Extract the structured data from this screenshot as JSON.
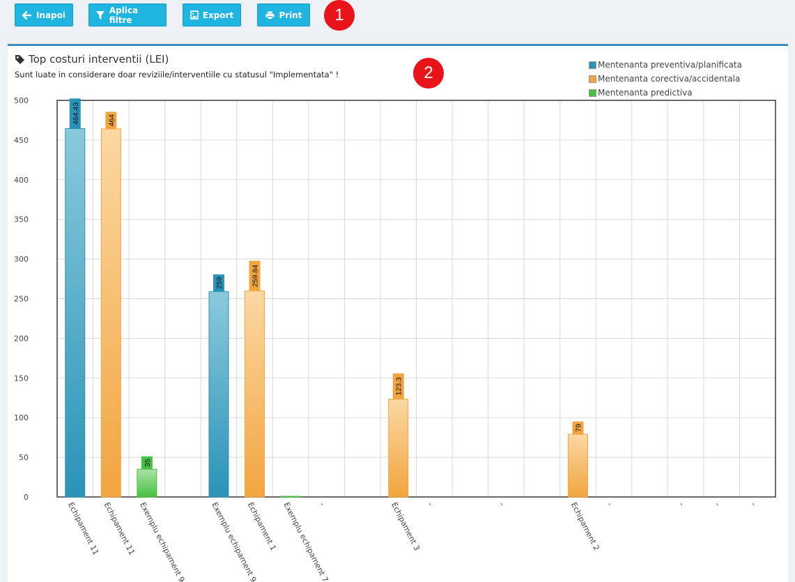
{
  "toolbar": {
    "back_label": "Inapoi",
    "filter_label": "Aplica filtre",
    "export_label": "Export",
    "print_label": "Print",
    "badge_1": "1"
  },
  "panel": {
    "title": "Top costuri interventii (LEI)",
    "subtitle": "Sunt luate in considerare doar reviziile/interventiile cu statusul \"Implementata\" !",
    "badge_2": "2"
  },
  "colors": {
    "button": "#1fb5e0",
    "preventiva": "#2b93b7",
    "corectiva": "#f2a53f",
    "predictiva": "#48c042",
    "badge": "#e8141a",
    "panel_border": "#3c8dbc"
  },
  "chart_data": {
    "type": "bar",
    "title": "Top costuri interventii (LEI)",
    "ylim": [
      0,
      500
    ],
    "yticks": [
      0,
      50,
      100,
      150,
      200,
      250,
      300,
      350,
      400,
      450,
      500
    ],
    "grid": true,
    "legend_position": "top-right",
    "legend": [
      {
        "name": "Mentenanta preventiva/planificata",
        "color": "#2b93b7"
      },
      {
        "name": "Mentenanta corectiva/accidentala",
        "color": "#f2a53f"
      },
      {
        "name": "Mentenanta predictiva",
        "color": "#48c042"
      }
    ],
    "categories": [
      "Echipament 11",
      "Echipament 11",
      "Exemplu echipament 9",
      "",
      "Exemplu echipament 9",
      "Echipament 1",
      "Exemplu echipament 7",
      "-",
      "",
      "Echipament 3",
      "-",
      "",
      "-",
      "",
      "Echipament 2",
      "-",
      "",
      "-",
      "-",
      "-"
    ],
    "bars": [
      {
        "index": 0,
        "series": 0,
        "value": 464.43,
        "label": "464.43"
      },
      {
        "index": 1,
        "series": 1,
        "value": 464,
        "label": "464"
      },
      {
        "index": 2,
        "series": 2,
        "value": 35,
        "label": "35"
      },
      {
        "index": 4,
        "series": 0,
        "value": 259,
        "label": "259"
      },
      {
        "index": 5,
        "series": 1,
        "value": 259.84,
        "label": "259.84"
      },
      {
        "index": 6,
        "series": 2,
        "value": 0,
        "label": ""
      },
      {
        "index": 9,
        "series": 1,
        "value": 123.3,
        "label": "123.3"
      },
      {
        "index": 14,
        "series": 1,
        "value": 79,
        "label": "79"
      }
    ]
  }
}
